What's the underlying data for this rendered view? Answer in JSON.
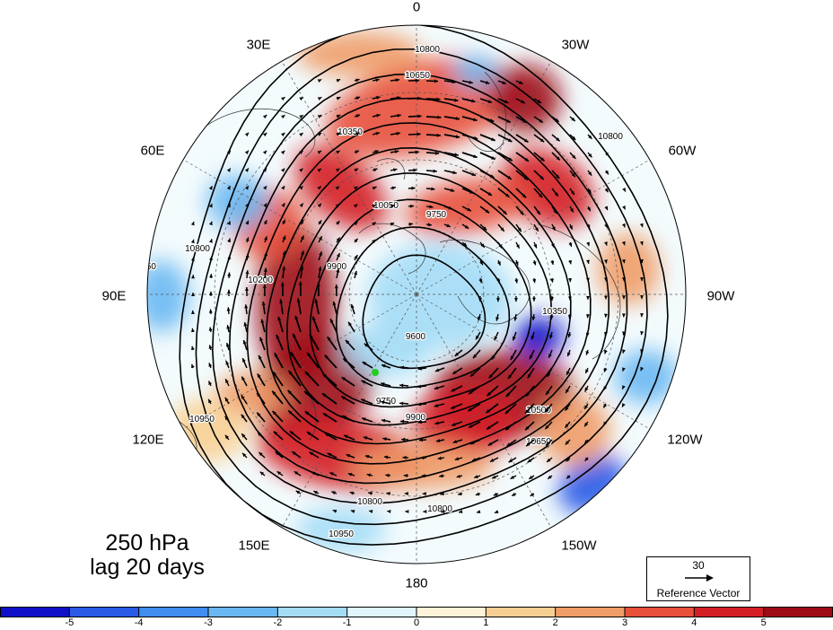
{
  "title": {
    "line1": "250 hPa",
    "line2": "lag 20 days"
  },
  "longitude_labels": {
    "lon_0": "0",
    "lon_30w": "30W",
    "lon_60w": "60W",
    "lon_90w": "90W",
    "lon_120w": "120W",
    "lon_150w": "150W",
    "lon_180": "180",
    "lon_150e": "150E",
    "lon_120e": "120E",
    "lon_90e": "90E",
    "lon_60e": "60E",
    "lon_30e": "30E"
  },
  "reference_vector": {
    "magnitude": "30",
    "label": "Reference Vector"
  },
  "colorbar": {
    "ticks": [
      "-5",
      "-4",
      "-3",
      "-2",
      "-1",
      "0",
      "1",
      "2",
      "3",
      "4",
      "5"
    ],
    "colors": [
      "#1010c8",
      "#2a5ae6",
      "#3f8ef0",
      "#6ab8f2",
      "#a4dcf6",
      "#dff5fb",
      "#fdf3d8",
      "#f8cf92",
      "#f09c68",
      "#e8503c",
      "#d41e26",
      "#9e0a18"
    ]
  },
  "contours": {
    "levels": [
      "9600",
      "9750",
      "9900",
      "10050",
      "10200",
      "10350",
      "10500",
      "10650",
      "10800",
      "10950"
    ]
  },
  "marker_color": "#22cc22"
}
